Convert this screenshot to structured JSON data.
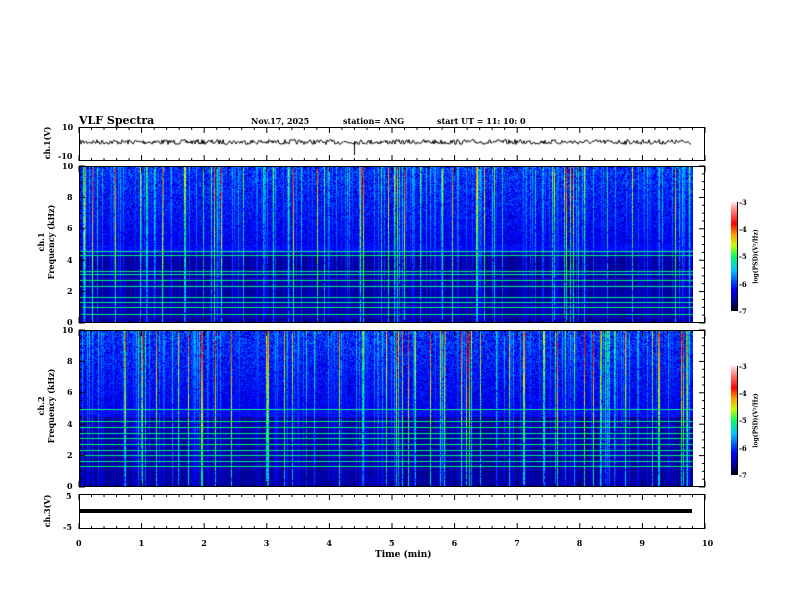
{
  "header": {
    "title": "VLF Spectra",
    "date": "Nov.17, 2025",
    "station": "station= ANG",
    "start": "start  UT =   11: 10: 0"
  },
  "chart_data": [
    {
      "type": "line",
      "name": "ch1-waveform",
      "ylabel": "ch.1(V)",
      "ylim": [
        -10,
        10
      ],
      "yticks": [
        "10",
        "-10"
      ],
      "xlim": [
        0,
        10
      ],
      "baseline": 0
    },
    {
      "type": "heatmap",
      "name": "ch1-spectrogram",
      "ylabel": "ch.1",
      "ylabel2": "Frequency  (kHz)",
      "ylim": [
        0,
        10
      ],
      "yticks": [
        "0",
        "2",
        "4",
        "6",
        "8",
        "10"
      ],
      "xlim": [
        0,
        10
      ],
      "data_end_min": 9.8,
      "tone_lines_khz": [
        0.5,
        1.0,
        1.3,
        1.6,
        2.3,
        2.7,
        3.1,
        3.3,
        4.3,
        4.6
      ],
      "colorbar": {
        "label": "log(PSD)(V²/Hz)",
        "range": [
          -7,
          -3
        ],
        "ticks": [
          "-3",
          "-4",
          "-5",
          "-6",
          "-7"
        ]
      }
    },
    {
      "type": "heatmap",
      "name": "ch2-spectrogram",
      "ylabel": "ch.2",
      "ylabel2": "Frequency  (kHz)",
      "ylim": [
        0,
        10
      ],
      "yticks": [
        "0",
        "2",
        "4",
        "6",
        "8",
        "10"
      ],
      "xlim": [
        0,
        10
      ],
      "data_end_min": 9.8,
      "tone_lines_khz": [
        1.3,
        1.6,
        2.0,
        2.3,
        2.7,
        3.1,
        3.4,
        3.8,
        4.2,
        5.0
      ],
      "colorbar": {
        "label": "log(PSD)(V²/Hz)",
        "range": [
          -7,
          -3
        ],
        "ticks": [
          "-3",
          "-4",
          "-5",
          "-6",
          "-7"
        ]
      }
    },
    {
      "type": "line",
      "name": "ch3-waveform",
      "ylabel": "ch.3(V)",
      "ylim": [
        -5,
        5
      ],
      "yticks": [
        "5",
        "-5"
      ],
      "xlim": [
        0,
        10
      ],
      "constant_value": 0
    }
  ],
  "xaxis": {
    "label": "Time  (min)",
    "ticks": [
      "0",
      "1",
      "2",
      "3",
      "4",
      "5",
      "6",
      "7",
      "8",
      "9",
      "10"
    ]
  }
}
